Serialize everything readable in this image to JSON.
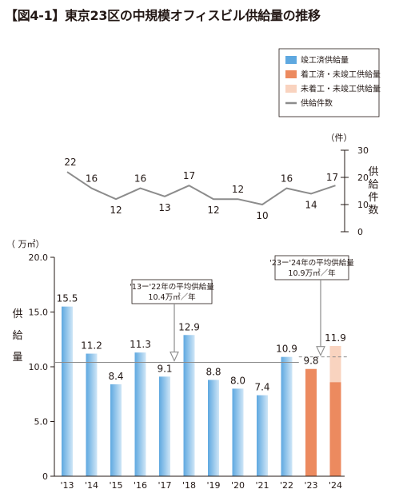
{
  "figure": {
    "title": "【図4-1】東京23区の中規模オフィスビル供給量の推移"
  },
  "colors": {
    "completed": "#5ea8e0",
    "completed_light": "#cfe6f7",
    "under_construction": "#ec8a5f",
    "planned": "#f9d3bf",
    "count_line": "#8c8c8c",
    "average_line": "#8c8c8c"
  },
  "legend": [
    {
      "key": "completed",
      "label": "竣工済供給量"
    },
    {
      "key": "under_construction",
      "label": "着工済・未竣工供給量"
    },
    {
      "key": "planned",
      "label": "未着工・未竣工供給量"
    },
    {
      "key": "count_line",
      "label": "供給件数"
    }
  ],
  "chart_data": [
    {
      "type": "line",
      "x": [
        "'13",
        "'14",
        "'15",
        "'16",
        "'17",
        "'18",
        "'19",
        "'20",
        "'21",
        "'22",
        "'23",
        "'24"
      ],
      "series": [
        {
          "name": "供給件数",
          "values": [
            22,
            16,
            12,
            16,
            13,
            17,
            12,
            12,
            10,
            16,
            14,
            17
          ]
        }
      ],
      "ylabel": "供給件数",
      "unit": "（件）",
      "ylim": [
        0,
        30
      ],
      "yticks": [
        "0",
        "10",
        "20",
        "30"
      ],
      "axis_side": "right"
    },
    {
      "type": "bar",
      "categories": [
        "'13",
        "'14",
        "'15",
        "'16",
        "'17",
        "'18",
        "'19",
        "'20",
        "'21",
        "'22",
        "'23",
        "'24"
      ],
      "values": [
        15.5,
        11.2,
        8.4,
        11.3,
        9.1,
        12.9,
        8.8,
        8.0,
        7.4,
        10.9,
        9.8,
        11.9
      ],
      "value_labels": [
        "15.5",
        "11.2",
        "8.4",
        "11.3",
        "9.1",
        "12.9",
        "8.8",
        "8.0",
        "7.4",
        "10.9",
        "9.8",
        "11.9"
      ],
      "stacked_last": {
        "category": "'24",
        "under_construction": 8.6,
        "planned": 3.3
      },
      "ylabel": "供給量",
      "unit": "（ 万㎡）",
      "ylim": [
        0,
        20
      ],
      "yticks": [
        "0",
        "5.0",
        "10.0",
        "15.0",
        "20.0"
      ],
      "averages": [
        {
          "label_line1": "'13ー'22年の平均供給量",
          "label_line2": "10.4万㎡／年",
          "value": 10.4,
          "from": "'13",
          "to": "'22",
          "arrow_to": "'17"
        },
        {
          "label_line1": "'23ー'24年の平均供給量",
          "label_line2": "10.9万㎡／年",
          "value": 10.9,
          "from": "'23",
          "to": "'24",
          "arrow_to": "'23"
        }
      ]
    }
  ]
}
